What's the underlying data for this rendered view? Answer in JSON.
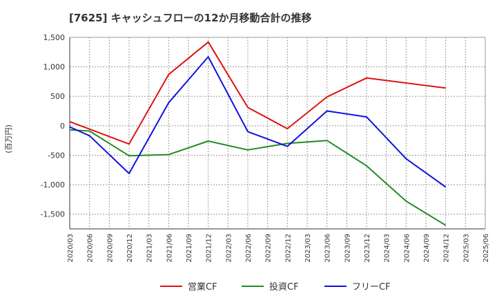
{
  "chart_data": {
    "type": "line",
    "title": "[7625]  キャッシュフローの12か月移動合計の推移",
    "ylabel": "(百万円)",
    "xlabel": "",
    "ylim": [
      -1750,
      1500
    ],
    "yticks": [
      1500,
      1000,
      500,
      0,
      -500,
      -1000,
      -1500
    ],
    "ytick_labels": [
      "1,500",
      "1,000",
      "500",
      "0",
      "-500",
      "-1,000",
      "-1,500"
    ],
    "categories": [
      "2020/03",
      "2020/06",
      "2020/09",
      "2020/12",
      "2021/03",
      "2021/06",
      "2021/09",
      "2021/12",
      "2022/03",
      "2022/06",
      "2022/09",
      "2022/12",
      "2023/03",
      "2023/06",
      "2023/09",
      "2023/12",
      "2024/03",
      "2024/06",
      "2024/09",
      "2024/12",
      "2025/03",
      "2025/06"
    ],
    "grid": true,
    "legend_position": "bottom",
    "series": [
      {
        "name": "営業CF",
        "color": "#e01010",
        "values": [
          {
            "i": 0,
            "v": 70
          },
          {
            "i": 3,
            "v": -310
          },
          {
            "i": 5,
            "v": 870
          },
          {
            "i": 7,
            "v": 1420
          },
          {
            "i": 9,
            "v": 310
          },
          {
            "i": 11,
            "v": -50
          },
          {
            "i": 13,
            "v": 490
          },
          {
            "i": 15,
            "v": 810
          },
          {
            "i": 19,
            "v": 640
          }
        ]
      },
      {
        "name": "投資CF",
        "color": "#228b22",
        "values": [
          {
            "i": 0,
            "v": -70
          },
          {
            "i": 1,
            "v": -90
          },
          {
            "i": 3,
            "v": -510
          },
          {
            "i": 5,
            "v": -490
          },
          {
            "i": 7,
            "v": -260
          },
          {
            "i": 9,
            "v": -410
          },
          {
            "i": 11,
            "v": -300
          },
          {
            "i": 13,
            "v": -250
          },
          {
            "i": 15,
            "v": -680
          },
          {
            "i": 17,
            "v": -1280
          },
          {
            "i": 19,
            "v": -1690
          }
        ]
      },
      {
        "name": "フリーCF",
        "color": "#1010e0",
        "values": [
          {
            "i": 0,
            "v": -20
          },
          {
            "i": 1,
            "v": -170
          },
          {
            "i": 3,
            "v": -810
          },
          {
            "i": 5,
            "v": 390
          },
          {
            "i": 7,
            "v": 1170
          },
          {
            "i": 9,
            "v": -100
          },
          {
            "i": 11,
            "v": -350
          },
          {
            "i": 13,
            "v": 250
          },
          {
            "i": 15,
            "v": 150
          },
          {
            "i": 17,
            "v": -560
          },
          {
            "i": 19,
            "v": -1040
          }
        ]
      }
    ]
  }
}
